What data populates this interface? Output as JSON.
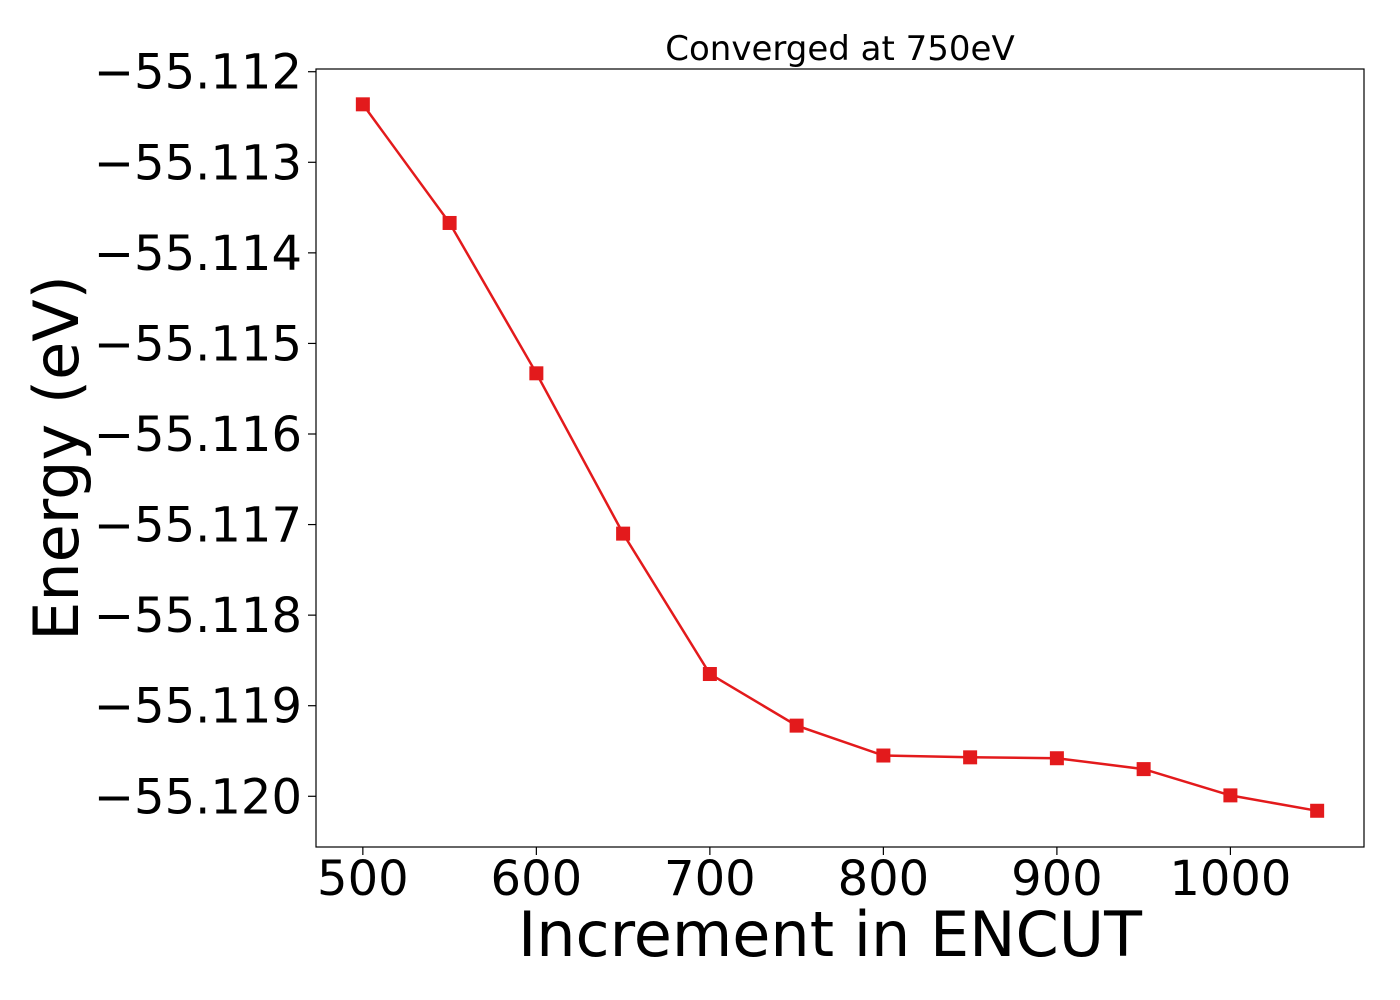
{
  "chart_data": {
    "type": "line",
    "title": "Converged at 750eV",
    "xlabel": "Increment in ENCUT",
    "ylabel": "Energy (eV)",
    "xlim": [
      473,
      1077
    ],
    "ylim": [
      -55.12056,
      -55.11197
    ],
    "x_ticks": [
      500,
      600,
      700,
      800,
      900,
      1000
    ],
    "x_tick_labels": [
      "500",
      "600",
      "700",
      "800",
      "900",
      "1000"
    ],
    "y_ticks": [
      -55.112,
      -55.113,
      -55.114,
      -55.115,
      -55.116,
      -55.117,
      -55.118,
      -55.119,
      -55.12
    ],
    "y_tick_labels": [
      "−55.112",
      "−55.113",
      "−55.114",
      "−55.115",
      "−55.116",
      "−55.117",
      "−55.118",
      "−55.119",
      "−55.120"
    ],
    "grid": false,
    "series": [
      {
        "color": "#e31a1c",
        "marker": "square",
        "x": [
          500,
          550,
          600,
          650,
          700,
          750,
          800,
          850,
          900,
          950,
          1000,
          1050
        ],
        "y": [
          -55.11236,
          -55.11367,
          -55.11533,
          -55.1171,
          -55.11865,
          -55.11922,
          -55.11955,
          -55.11957,
          -55.11958,
          -55.1197,
          -55.11999,
          -55.12016
        ]
      }
    ]
  }
}
